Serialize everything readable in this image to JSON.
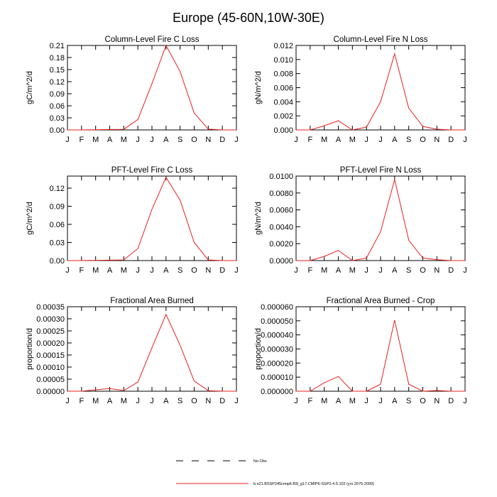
{
  "figure": {
    "title": "Europe (45-60N,10W-30E)",
    "legend": [
      {
        "label": "No Obs",
        "style": "dashed",
        "color": "#000000"
      },
      {
        "label": "b.e21.BSSP245cmip6.f09_g17.CMIP6-SSP2-4.5.102 (yrs 2075-2099)",
        "style": "solid",
        "color": "#e8201e"
      }
    ]
  },
  "chart_data": [
    {
      "type": "line",
      "title": "Column-Level Fire C Loss",
      "ylabel": "gC/m^2/d",
      "categories": [
        "J",
        "F",
        "M",
        "A",
        "M",
        "J",
        "J",
        "A",
        "S",
        "O",
        "N",
        "D",
        "J"
      ],
      "ylim": [
        0,
        0.21
      ],
      "yticks": [
        "0.00",
        "0.03",
        "0.06",
        "0.09",
        "0.12",
        "0.15",
        "0.18",
        "0.21"
      ],
      "series": [
        {
          "values": [
            0.0,
            0.0,
            0.0005,
            0.001,
            0.0015,
            0.026,
            0.115,
            0.21,
            0.145,
            0.042,
            0.002,
            0.0,
            0.0
          ],
          "color": "#e8201e"
        }
      ]
    },
    {
      "type": "line",
      "title": "Column-Level Fire N Loss",
      "ylabel": "gN/m^2/d",
      "categories": [
        "J",
        "F",
        "M",
        "A",
        "M",
        "J",
        "J",
        "A",
        "S",
        "O",
        "N",
        "D",
        "J"
      ],
      "ylim": [
        0,
        0.012
      ],
      "yticks": [
        "0.000",
        "0.002",
        "0.004",
        "0.006",
        "0.008",
        "0.010",
        "0.012"
      ],
      "series": [
        {
          "values": [
            0.0,
            0.0,
            0.0006,
            0.0013,
            0.0,
            0.0004,
            0.004,
            0.0108,
            0.0031,
            0.0005,
            0.0001,
            0.0,
            0.0
          ],
          "color": "#e8201e"
        }
      ]
    },
    {
      "type": "line",
      "title": "PFT-Level Fire C Loss",
      "ylabel": "gC/m^2/d",
      "categories": [
        "J",
        "F",
        "M",
        "A",
        "M",
        "J",
        "J",
        "A",
        "S",
        "O",
        "N",
        "D",
        "J"
      ],
      "ylim": [
        0,
        0.14
      ],
      "yticks": [
        "0.00",
        "0.03",
        "0.06",
        "0.09",
        "0.12"
      ],
      "series": [
        {
          "values": [
            0.0,
            0.0,
            0.0003,
            0.0007,
            0.001,
            0.02,
            0.085,
            0.138,
            0.1,
            0.03,
            0.001,
            0.0,
            0.0
          ],
          "color": "#e8201e"
        }
      ]
    },
    {
      "type": "line",
      "title": "PFT-Level Fire N Loss",
      "ylabel": "gN/m^2/d",
      "categories": [
        "J",
        "F",
        "M",
        "A",
        "M",
        "J",
        "J",
        "A",
        "S",
        "O",
        "N",
        "D",
        "J"
      ],
      "ylim": [
        0,
        0.01
      ],
      "yticks": [
        "0.0000",
        "0.0020",
        "0.0040",
        "0.0060",
        "0.0080",
        "0.0100"
      ],
      "series": [
        {
          "values": [
            0.0,
            0.0,
            0.0005,
            0.0012,
            0.0,
            0.0003,
            0.0034,
            0.0096,
            0.0024,
            0.0003,
            0.0001,
            0.0,
            0.0
          ],
          "color": "#e8201e"
        }
      ]
    },
    {
      "type": "line",
      "title": "Fractional Area Burned",
      "ylabel": "proportion/d",
      "categories": [
        "J",
        "F",
        "M",
        "A",
        "M",
        "J",
        "J",
        "A",
        "S",
        "O",
        "N",
        "D",
        "J"
      ],
      "ylim": [
        0,
        0.00035
      ],
      "yticks": [
        "0.00000",
        "0.00005",
        "0.00010",
        "0.00015",
        "0.00020",
        "0.00025",
        "0.00030",
        "0.00035"
      ],
      "series": [
        {
          "values": [
            0.0,
            0.0,
            6e-06,
            1.1e-05,
            3e-06,
            3.8e-05,
            0.00018,
            0.000318,
            0.00019,
            4.2e-05,
            2e-06,
            0.0,
            0.0
          ],
          "color": "#e8201e"
        }
      ]
    },
    {
      "type": "line",
      "title": "Fractional Area Burned - Crop",
      "ylabel": "proportion/d",
      "categories": [
        "J",
        "F",
        "M",
        "A",
        "M",
        "J",
        "J",
        "A",
        "S",
        "O",
        "N",
        "D",
        "J"
      ],
      "ylim": [
        0,
        6e-05
      ],
      "yticks": [
        "0.000000",
        "0.000010",
        "0.000020",
        "0.000030",
        "0.000040",
        "0.000050",
        "0.000060"
      ],
      "series": [
        {
          "values": [
            0.0,
            0.0,
            6e-06,
            1.05e-05,
            0.0,
            0.0,
            5e-06,
            5.05e-05,
            5e-06,
            0.0,
            5e-07,
            0.0,
            0.0
          ],
          "color": "#e8201e"
        }
      ]
    }
  ]
}
